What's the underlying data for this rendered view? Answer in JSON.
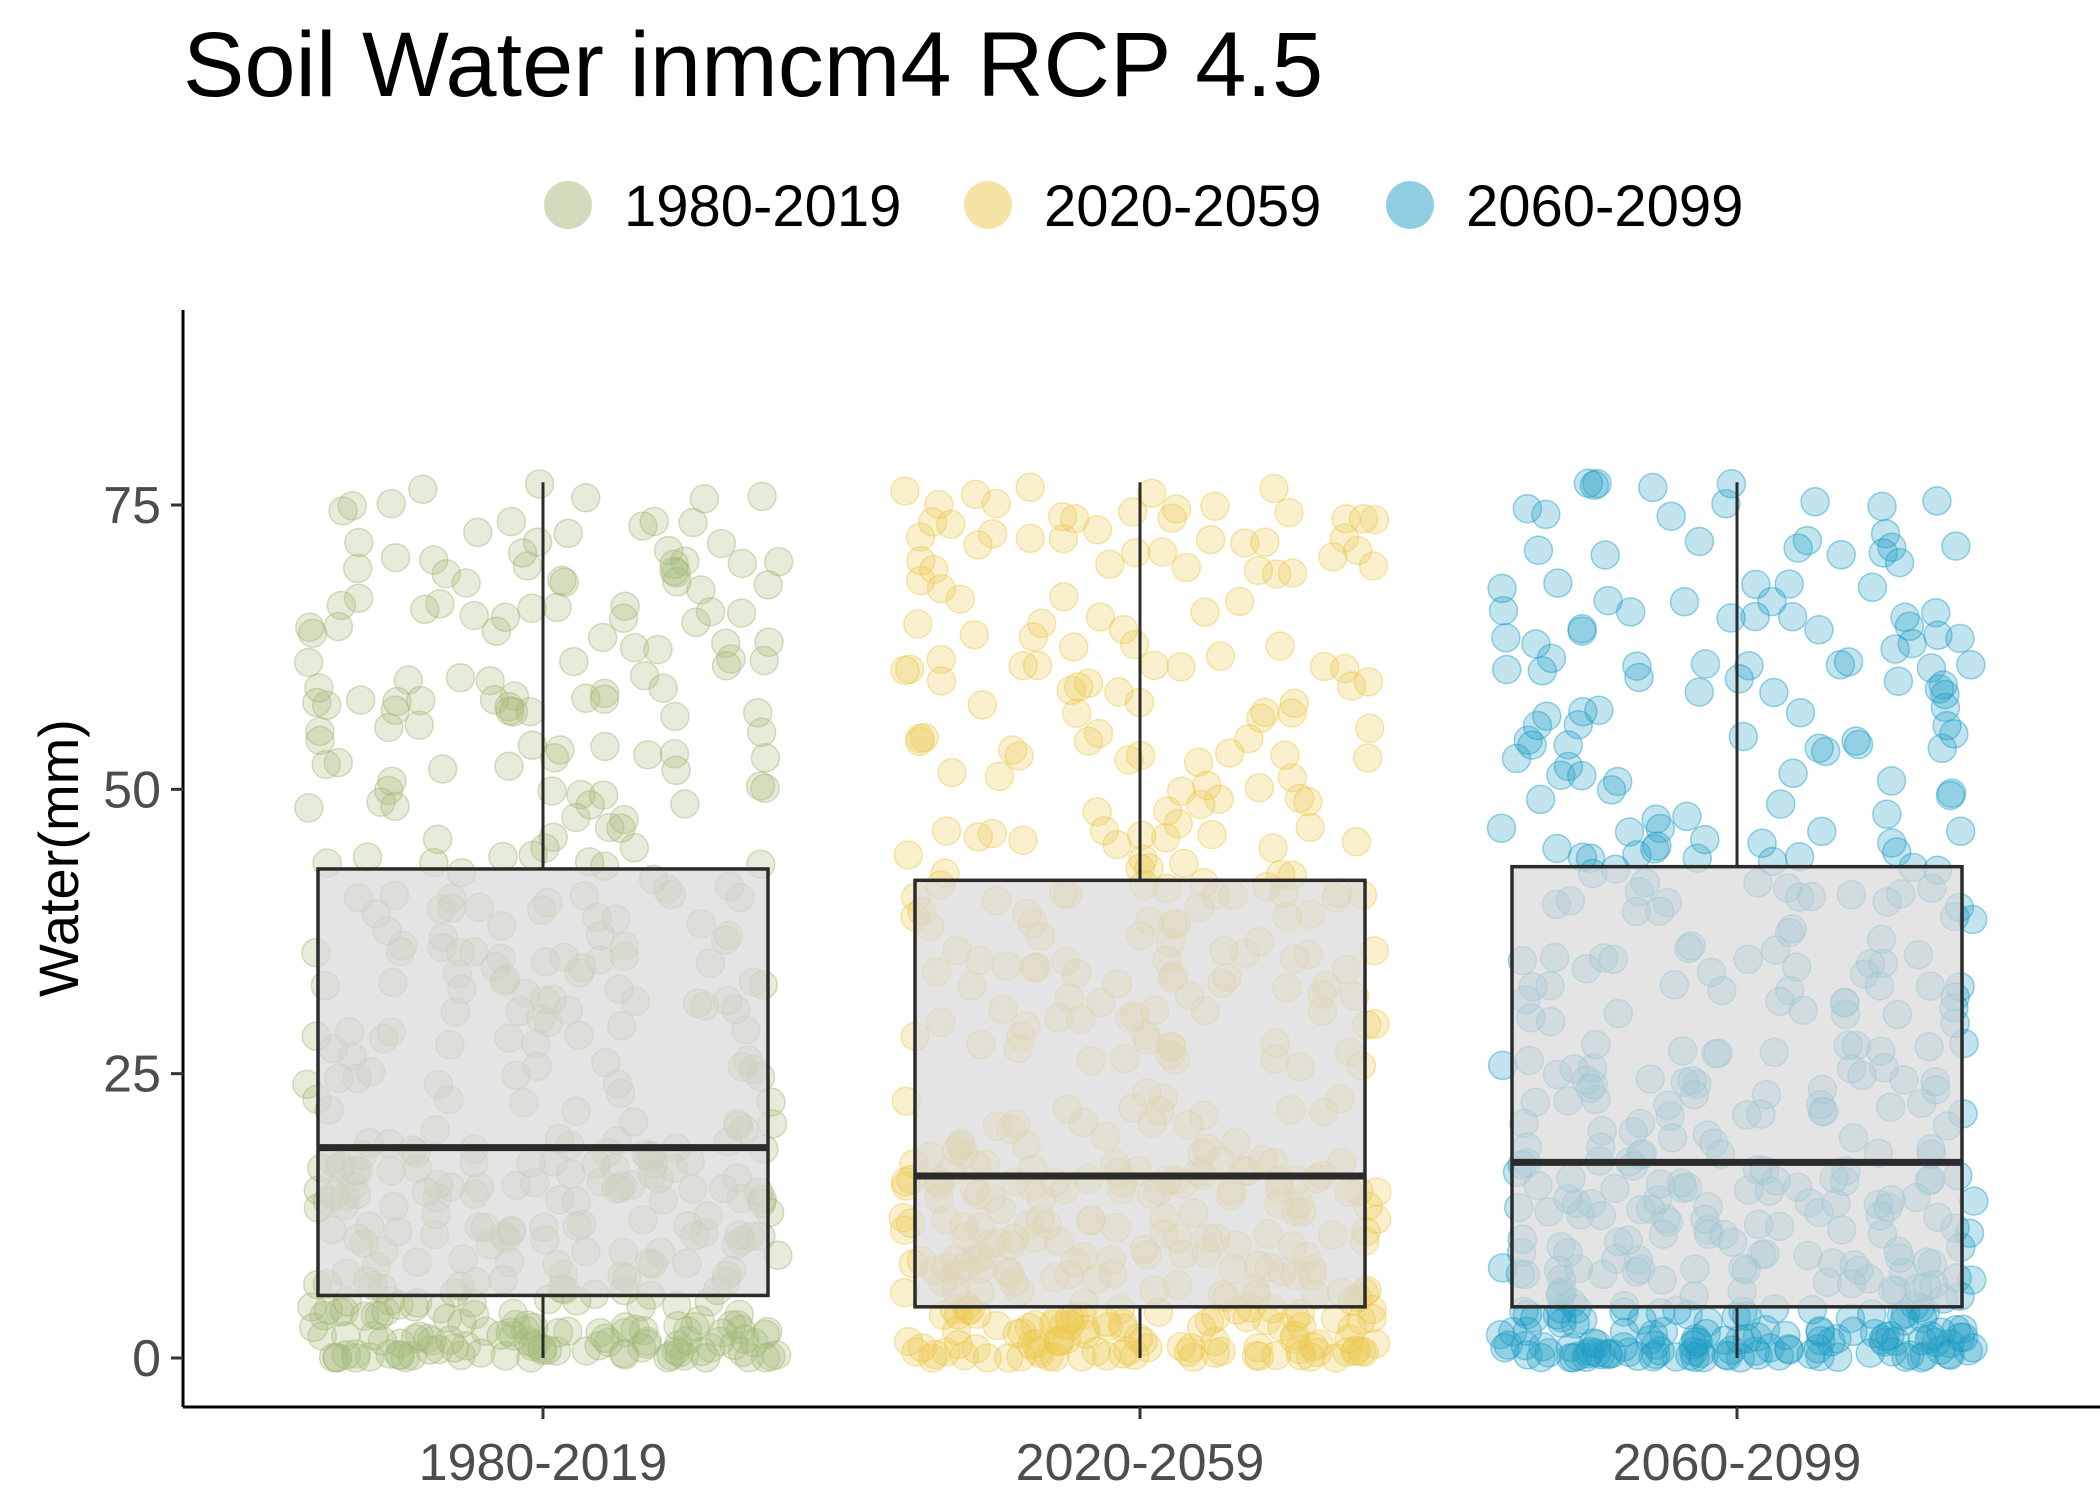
{
  "chart_data": {
    "type": "boxplot_jitter",
    "title": "Soil Water inmcm4 RCP 4.5",
    "xlabel": "",
    "ylabel": "Water(mm)",
    "ylim": [
      -5,
      92
    ],
    "yticks": [
      0,
      25,
      50,
      75
    ],
    "legend_position": "top",
    "grid": false,
    "categories": [
      "1980-2019",
      "2020-2059",
      "2060-2099"
    ],
    "series": [
      {
        "name": "1980-2019",
        "color": "#a4b97a",
        "q1": 5.5,
        "median": 18.5,
        "q3": 43.0,
        "whisker_low": 0,
        "whisker_high": 77.0,
        "n_points": 480
      },
      {
        "name": "2020-2059",
        "color": "#ecca4e",
        "q1": 4.5,
        "median": 16.0,
        "q3": 42.0,
        "whisker_low": 0,
        "whisker_high": 77.0,
        "n_points": 480
      },
      {
        "name": "2060-2099",
        "color": "#1f9dc6",
        "q1": 4.5,
        "median": 17.2,
        "q3": 43.2,
        "whisker_low": 0,
        "whisker_high": 77.0,
        "n_points": 480
      }
    ],
    "box_fill": "#d9d9d9",
    "box_stroke": "#2b2b2b"
  }
}
